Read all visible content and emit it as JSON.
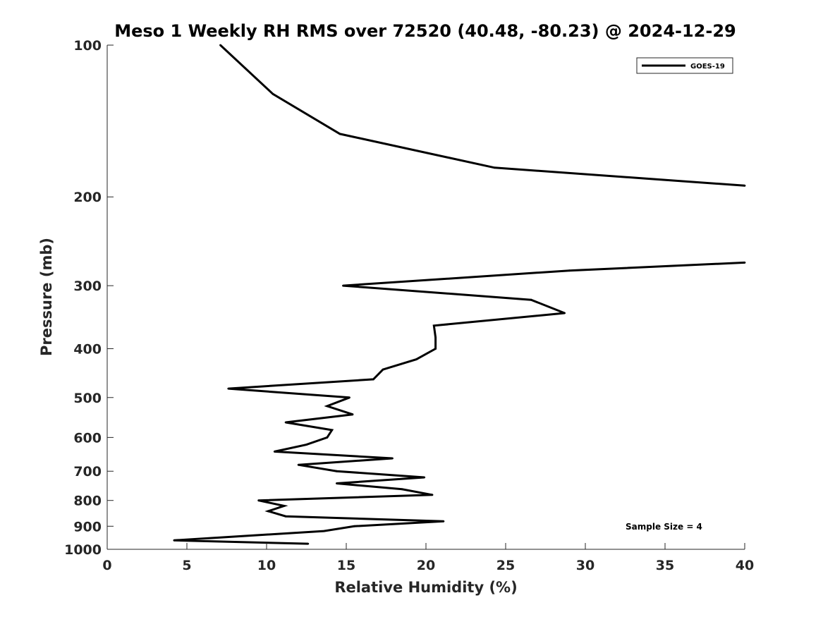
{
  "chart_data": {
    "type": "line",
    "title": "Meso 1 Weekly RH RMS over 72520 (40.48, -80.23) @ 2024-12-29",
    "xlabel": "Relative Humidity (%)",
    "ylabel": "Pressure (mb)",
    "xlim": [
      0,
      40
    ],
    "ylim": [
      1000,
      100
    ],
    "y_scale": "log",
    "x_ticks": [
      "0",
      "5",
      "10",
      "15",
      "20",
      "25",
      "30",
      "35",
      "40"
    ],
    "y_ticks": [
      "100",
      "200",
      "300",
      "400",
      "500",
      "600",
      "700",
      "800",
      "900",
      "1000"
    ],
    "grid": false,
    "legend_position": "top-right",
    "annotation": "Sample Size = 4",
    "series": [
      {
        "name": "GOES-19",
        "color": "#000000",
        "segments": [
          [
            {
              "x": 7.1,
              "y": 100
            },
            {
              "x": 10.4,
              "y": 125
            },
            {
              "x": 14.6,
              "y": 150
            },
            {
              "x": 24.3,
              "y": 175
            },
            {
              "x": 40.0,
              "y": 190
            }
          ],
          [
            {
              "x": 40.0,
              "y": 270
            },
            {
              "x": 29.0,
              "y": 280
            },
            {
              "x": 14.8,
              "y": 300
            },
            {
              "x": 26.6,
              "y": 320
            },
            {
              "x": 28.7,
              "y": 340
            },
            {
              "x": 20.5,
              "y": 360
            },
            {
              "x": 20.6,
              "y": 380
            },
            {
              "x": 20.6,
              "y": 400
            },
            {
              "x": 19.4,
              "y": 420
            },
            {
              "x": 17.3,
              "y": 440
            },
            {
              "x": 16.7,
              "y": 460
            },
            {
              "x": 7.6,
              "y": 480
            },
            {
              "x": 15.2,
              "y": 500
            },
            {
              "x": 13.8,
              "y": 520
            },
            {
              "x": 15.4,
              "y": 540
            },
            {
              "x": 11.2,
              "y": 560
            },
            {
              "x": 14.1,
              "y": 580
            },
            {
              "x": 13.8,
              "y": 600
            },
            {
              "x": 12.5,
              "y": 620
            },
            {
              "x": 10.5,
              "y": 640
            },
            {
              "x": 17.9,
              "y": 660
            },
            {
              "x": 12.0,
              "y": 680
            },
            {
              "x": 14.4,
              "y": 700
            },
            {
              "x": 19.9,
              "y": 720
            },
            {
              "x": 14.4,
              "y": 740
            },
            {
              "x": 18.5,
              "y": 760
            },
            {
              "x": 20.4,
              "y": 780
            },
            {
              "x": 9.5,
              "y": 800
            },
            {
              "x": 11.1,
              "y": 820
            },
            {
              "x": 10.1,
              "y": 840
            },
            {
              "x": 11.2,
              "y": 860
            },
            {
              "x": 21.1,
              "y": 880
            },
            {
              "x": 15.5,
              "y": 900
            },
            {
              "x": 13.6,
              "y": 920
            },
            {
              "x": 4.2,
              "y": 960
            },
            {
              "x": 12.6,
              "y": 975
            }
          ]
        ]
      }
    ]
  }
}
